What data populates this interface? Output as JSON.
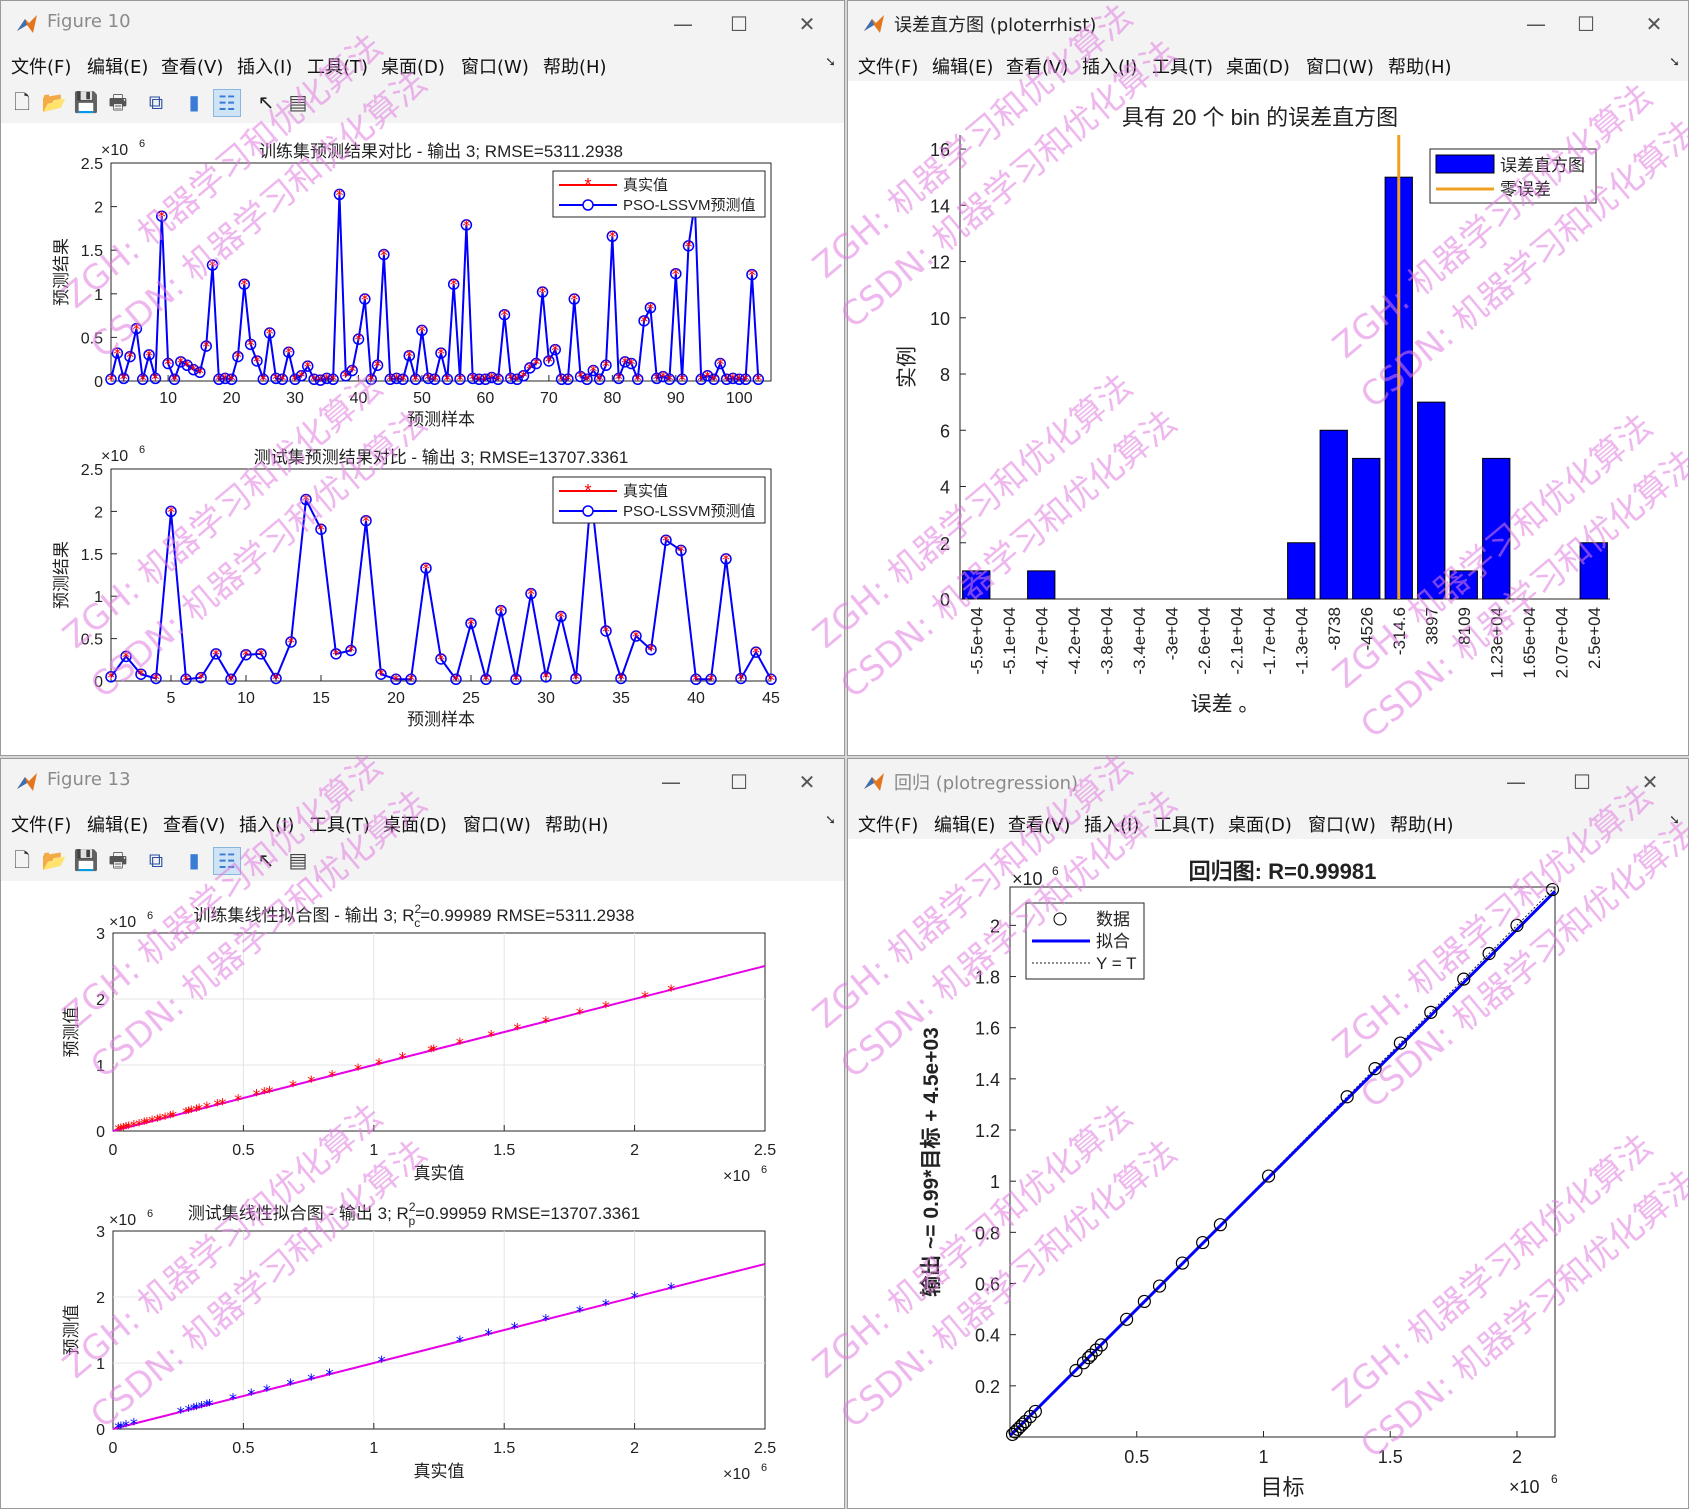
{
  "windows": {
    "fig10": {
      "title": "Figure 10",
      "menu": [
        "文件(F)",
        "编辑(E)",
        "查看(V)",
        "插入(I)",
        "工具(T)",
        "桌面(D)",
        "窗口(W)",
        "帮助(H)"
      ]
    },
    "errhist": {
      "title": "误差直方图 (ploterrhist)",
      "menu": [
        "文件(F)",
        "编辑(E)",
        "查看(V)",
        "插入(I)",
        "工具(T)",
        "桌面(D)",
        "窗口(W)",
        "帮助(H)"
      ]
    },
    "fig13": {
      "title": "Figure 13",
      "menu": [
        "文件(F)",
        "编辑(E)",
        "查看(V)",
        "插入(I)",
        "工具(T)",
        "桌面(D)",
        "窗口(W)",
        "帮助(H)"
      ]
    },
    "regression": {
      "title": "回归 (plotregression)",
      "menu": [
        "文件(F)",
        "编辑(E)",
        "查看(V)",
        "插入(I)",
        "工具(T)",
        "桌面(D)",
        "窗口(W)",
        "帮助(H)"
      ]
    }
  },
  "window_buttons": {
    "minimize": "—",
    "maximize": "☐",
    "close": "✕"
  },
  "toolbar_icons": [
    "new-file-icon",
    "open-folder-icon",
    "save-icon",
    "print-icon",
    "link-figure-icon",
    "colorbar-icon",
    "legend-icon",
    "pointer-icon",
    "property-inspector-icon"
  ],
  "watermark": {
    "line1": "ZGH: 机器学习和优化算法",
    "line2": "CSDN: 机器学习和优化算法",
    "color": "#e07be0"
  },
  "colors": {
    "red": "#ff0000",
    "blue": "#0000ff",
    "magenta": "#e600e6",
    "orange": "#f0a020"
  },
  "chart_data": [
    {
      "id": "train-compare",
      "type": "line",
      "title": "训练集预测结果对比 - 输出 3; RMSE=5311.2938",
      "xlabel": "预测样本",
      "ylabel": "预测结果",
      "xlim": [
        1,
        105
      ],
      "ylim": [
        0,
        2500000
      ],
      "yexponent": "×10^6",
      "xticks": [
        "10",
        "20",
        "30",
        "40",
        "50",
        "60",
        "70",
        "80",
        "90",
        "100"
      ],
      "yticks": [
        "0",
        "0.5",
        "1",
        "1.5",
        "2",
        "2.5"
      ],
      "legend": [
        "真实值",
        "PSO-LSSVM预测值"
      ],
      "legend_position": "top-right",
      "grid": false,
      "series_values": [
        20000,
        320000,
        30000,
        280000,
        600000,
        20000,
        300000,
        30000,
        1890000,
        200000,
        20000,
        220000,
        180000,
        130000,
        100000,
        400000,
        1330000,
        20000,
        30000,
        20000,
        280000,
        1110000,
        420000,
        230000,
        20000,
        550000,
        30000,
        20000,
        330000,
        20000,
        60000,
        170000,
        20000,
        10000,
        30000,
        20000,
        2140000,
        60000,
        120000,
        480000,
        940000,
        20000,
        180000,
        1450000,
        20000,
        30000,
        20000,
        290000,
        20000,
        580000,
        30000,
        20000,
        320000,
        20000,
        1110000,
        20000,
        1790000,
        30000,
        20000,
        20000,
        40000,
        20000,
        760000,
        30000,
        20000,
        60000,
        150000,
        200000,
        1020000,
        230000,
        360000,
        20000,
        20000,
        940000,
        50000,
        20000,
        120000,
        20000,
        180000,
        1660000,
        30000,
        220000,
        200000,
        20000,
        690000,
        840000,
        30000,
        50000,
        20000,
        1230000,
        20000,
        1550000,
        2040000,
        20000,
        60000,
        20000,
        200000,
        20000,
        30000,
        20000,
        20000,
        1220000,
        20000
      ]
    },
    {
      "id": "test-compare",
      "type": "line",
      "title": "测试集预测结果对比 - 输出 3; RMSE=13707.3361",
      "xlabel": "预测样本",
      "ylabel": "预测结果",
      "xlim": [
        1,
        45
      ],
      "ylim": [
        0,
        2500000
      ],
      "yexponent": "×10^6",
      "xticks": [
        "5",
        "10",
        "15",
        "20",
        "25",
        "30",
        "35",
        "40",
        "45"
      ],
      "yticks": [
        "0",
        "0.5",
        "1",
        "1.5",
        "2",
        "2.5"
      ],
      "legend": [
        "真实值",
        "PSO-LSSVM预测值"
      ],
      "legend_position": "top-right",
      "grid": false,
      "series_values": [
        50000,
        290000,
        80000,
        30000,
        2000000,
        20000,
        40000,
        320000,
        20000,
        310000,
        320000,
        30000,
        460000,
        2140000,
        1790000,
        320000,
        360000,
        1890000,
        80000,
        20000,
        20000,
        1330000,
        260000,
        20000,
        680000,
        20000,
        830000,
        20000,
        1030000,
        50000,
        760000,
        30000,
        2200000,
        590000,
        30000,
        530000,
        370000,
        1660000,
        1540000,
        20000,
        20000,
        1440000,
        30000,
        340000,
        20000
      ]
    },
    {
      "id": "error-histogram",
      "type": "bar",
      "title": "具有 20 个 bin 的误差直方图",
      "xlabel": "误差 。",
      "ylabel": "实例",
      "categories": [
        "-5.5e+04",
        "-5.1e+04",
        "-4.7e+04",
        "-4.2e+04",
        "-3.8e+04",
        "-3.4e+04",
        "-3e+04",
        "-2.6e+04",
        "-2.1e+04",
        "-1.7e+04",
        "-1.3e+04",
        "-8738",
        "-4526",
        "-314.6",
        "3897",
        "8109",
        "1.23e+04",
        "1.65e+04",
        "2.07e+04",
        "2.5e+04"
      ],
      "values": [
        1,
        0,
        1,
        0,
        0,
        0,
        0,
        0,
        0,
        0,
        2,
        6,
        5,
        15,
        7,
        1,
        5,
        0,
        0,
        2
      ],
      "ylim": [
        0,
        16.5
      ],
      "yticks": [
        "0",
        "2",
        "4",
        "6",
        "8",
        "10",
        "12",
        "14",
        "16"
      ],
      "zero_error_at": 0,
      "legend": [
        "误差直方图",
        "零误差"
      ],
      "legend_position": "top-right"
    },
    {
      "id": "train-fit",
      "type": "scatter",
      "title_main": "训练集线性拟合图 - 输出 3; R",
      "title_sub": "c",
      "title_rest": "=0.99989  RMSE=5311.2938",
      "xlabel": "真实值",
      "ylabel": "预测值",
      "xlim": [
        0,
        2500000
      ],
      "ylim": [
        0,
        3000000
      ],
      "xexponent": "×10^6",
      "yexponent": "×10^6",
      "xticks": [
        "0",
        "0.5",
        "1",
        "1.5",
        "2",
        "2.5"
      ],
      "yticks": [
        "0",
        "1",
        "2",
        "3"
      ],
      "grid": true,
      "points_x": [
        20000,
        30000,
        40000,
        50000,
        60000,
        80000,
        100000,
        120000,
        130000,
        150000,
        170000,
        180000,
        200000,
        220000,
        230000,
        280000,
        290000,
        300000,
        320000,
        330000,
        360000,
        400000,
        420000,
        480000,
        550000,
        580000,
        600000,
        690000,
        760000,
        840000,
        940000,
        1020000,
        1110000,
        1220000,
        1230000,
        1330000,
        1450000,
        1550000,
        1660000,
        1790000,
        1890000,
        2040000,
        2140000
      ],
      "fit_line": [
        [
          0,
          0
        ],
        [
          2500000,
          2500000
        ]
      ]
    },
    {
      "id": "test-fit",
      "type": "scatter",
      "title_main": "测试集线性拟合图 - 输出 3; R",
      "title_sub": "p",
      "title_rest": "=0.99959  RMSE=13707.3361",
      "xlabel": "真实值",
      "ylabel": "预测值",
      "xlim": [
        0,
        2500000
      ],
      "ylim": [
        0,
        3000000
      ],
      "xexponent": "×10^6",
      "yexponent": "×10^6",
      "xticks": [
        "0",
        "0.5",
        "1",
        "1.5",
        "2",
        "2.5"
      ],
      "yticks": [
        "0",
        "1",
        "2",
        "3"
      ],
      "grid": true,
      "points_x": [
        20000,
        30000,
        50000,
        80000,
        260000,
        290000,
        310000,
        320000,
        340000,
        360000,
        370000,
        460000,
        530000,
        590000,
        680000,
        760000,
        830000,
        1030000,
        1330000,
        1440000,
        1540000,
        1660000,
        1790000,
        1890000,
        2000000,
        2140000
      ],
      "fit_line": [
        [
          0,
          0
        ],
        [
          2500000,
          2500000
        ]
      ]
    },
    {
      "id": "regression",
      "type": "scatter",
      "title": "回归图: R=0.99981",
      "xlabel": "目标",
      "ylabel": "输出 ~= 0.99*目标 + 4.5e+03",
      "xlim": [
        0,
        2150000
      ],
      "ylim": [
        0,
        2150000
      ],
      "xexponent": "×10^6",
      "yexponent": "×10^6",
      "xticks": [
        "0.5",
        "1",
        "1.5",
        "2"
      ],
      "yticks": [
        "0.2",
        "0.4",
        "0.6",
        "0.8",
        "1",
        "1.2",
        "1.4",
        "1.6",
        "1.8",
        "2"
      ],
      "legend": [
        "数据",
        "拟合",
        "Y = T"
      ],
      "legend_position": "top-left",
      "points_x": [
        10000,
        20000,
        30000,
        40000,
        50000,
        60000,
        80000,
        100000,
        260000,
        290000,
        310000,
        320000,
        340000,
        360000,
        460000,
        530000,
        590000,
        680000,
        760000,
        830000,
        1020000,
        1330000,
        1440000,
        1540000,
        1660000,
        1790000,
        1890000,
        2000000,
        2140000
      ]
    }
  ]
}
